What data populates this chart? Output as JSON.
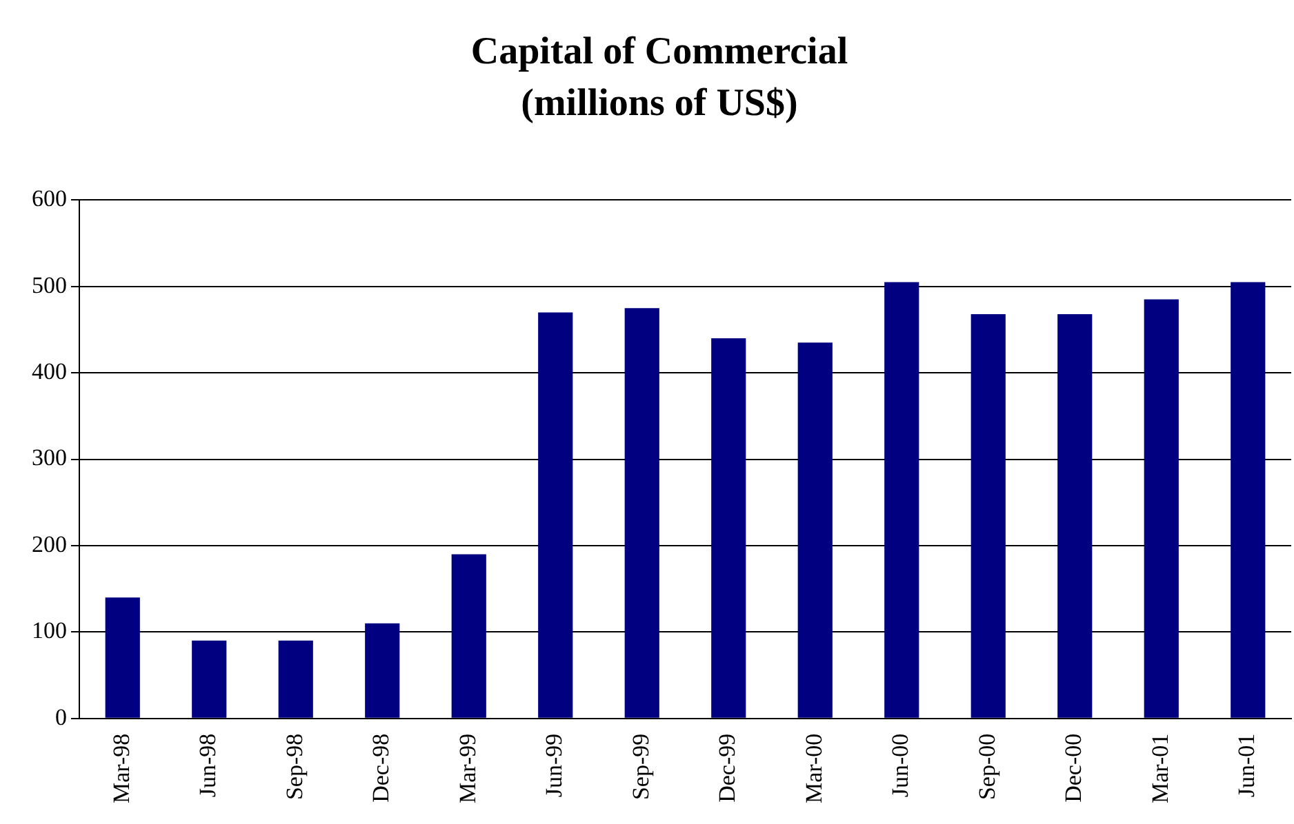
{
  "chart_data": {
    "type": "bar",
    "title": "Capital of Commercial",
    "subtitle": "(millions of US$)",
    "categories": [
      "Mar-98",
      "Jun-98",
      "Sep-98",
      "Dec-98",
      "Mar-99",
      "Jun-99",
      "Sep-99",
      "Dec-99",
      "Mar-00",
      "Jun-00",
      "Sep-00",
      "Dec-00",
      "Mar-01",
      "Jun-01"
    ],
    "values": [
      140,
      90,
      90,
      110,
      190,
      470,
      475,
      440,
      435,
      505,
      468,
      468,
      485,
      505
    ],
    "color": "#000080",
    "ylim": [
      0,
      600
    ],
    "yticks": [
      0,
      100,
      200,
      300,
      400,
      500,
      600
    ],
    "grid": "y",
    "legend": false
  }
}
